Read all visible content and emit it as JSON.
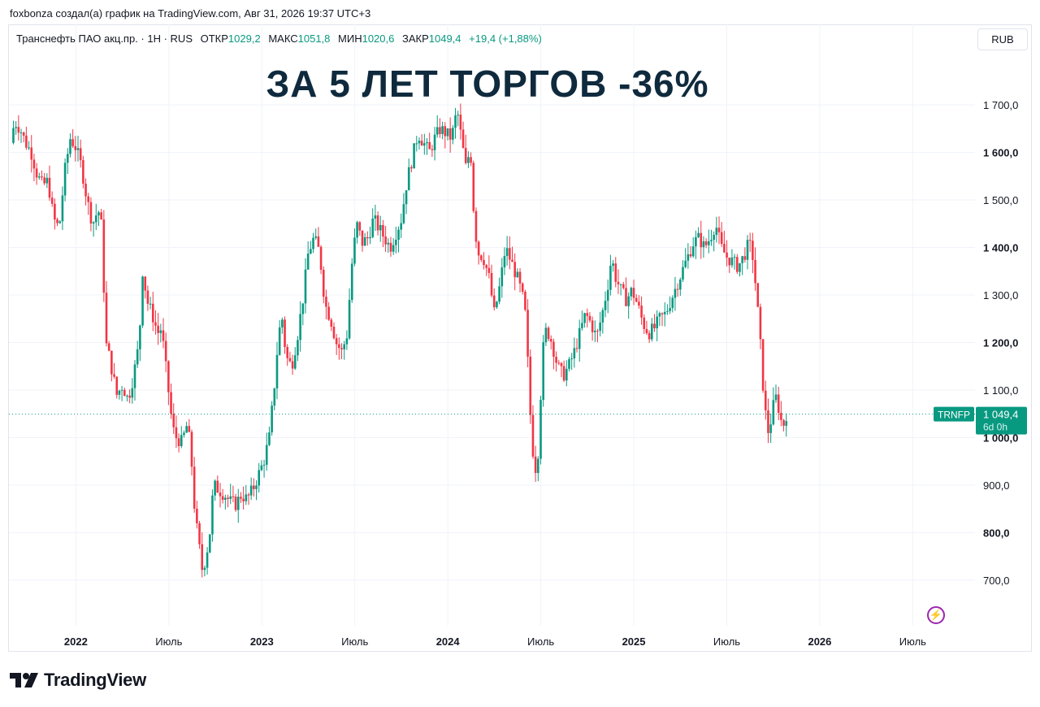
{
  "header_line": "foxbonza создал(а) график на TradingView.com, Авг 31, 2026 19:37 UTC+3",
  "legend": {
    "symbol": "Транснефть ПАО акц.пр. · 1H · RUS",
    "open_label": "ОТКР",
    "open": "1029,2",
    "high_label": "МАКС",
    "high": "1051,8",
    "low_label": "МИН",
    "low": "1020,6",
    "close_label": "ЗАКР",
    "close": "1049,4",
    "change": "+19,4 (+1,88%)"
  },
  "currency_button": "RUB",
  "title": "ЗА 5 ЛЕТ ТОРГОВ -36%",
  "price_tag": {
    "ticker": "TRNFP",
    "price": "1 049,4",
    "countdown": "6d 0h"
  },
  "brand": "TradingView",
  "colors": {
    "up": "#089981",
    "down": "#f23645",
    "title": "#0f2a3d",
    "accent_bolt": "#9c27b0"
  },
  "chart_data": {
    "type": "candlestick",
    "y_ticks": [
      "1 700,0",
      "1 600,0",
      "1 500,0",
      "1 400,0",
      "1 300,0",
      "1 200,0",
      "1 100,0",
      "1 000,0",
      "900,0",
      "800,0",
      "700,0"
    ],
    "y_tick_values": [
      1700,
      1600,
      1500,
      1400,
      1300,
      1200,
      1100,
      1000,
      900,
      800,
      700
    ],
    "y_tick_bold": [
      false,
      true,
      false,
      true,
      false,
      true,
      false,
      true,
      false,
      true,
      false
    ],
    "ylim": [
      610,
      1740
    ],
    "x_ticks": [
      "2022",
      "Июль",
      "2023",
      "Июль",
      "2024",
      "Июль",
      "2025",
      "Июль",
      "2026",
      "Июль"
    ],
    "x_tick_bold": [
      true,
      false,
      true,
      false,
      true,
      false,
      true,
      false,
      true,
      false
    ],
    "x_tick_dates": [
      2022.0,
      2022.5,
      2023.0,
      2023.5,
      2024.0,
      2024.5,
      2025.0,
      2025.5,
      2026.0,
      2026.5
    ],
    "x_range": [
      2021.64,
      2026.66
    ],
    "last_price": 1049.4,
    "path": [
      [
        2021.65,
        1620
      ],
      [
        2021.67,
        1665
      ],
      [
        2021.7,
        1650
      ],
      [
        2021.73,
        1620
      ],
      [
        2021.76,
        1600
      ],
      [
        2021.79,
        1555
      ],
      [
        2021.82,
        1530
      ],
      [
        2021.85,
        1540
      ],
      [
        2021.88,
        1460
      ],
      [
        2021.91,
        1440
      ],
      [
        2021.94,
        1560
      ],
      [
        2021.97,
        1630
      ],
      [
        2022.0,
        1610
      ],
      [
        2022.03,
        1570
      ],
      [
        2022.06,
        1500
      ],
      [
        2022.09,
        1450
      ],
      [
        2022.12,
        1480
      ],
      [
        2022.14,
        1440
      ],
      [
        2022.16,
        1200
      ],
      [
        2022.18,
        1170
      ],
      [
        2022.2,
        1130
      ],
      [
        2022.22,
        1090
      ],
      [
        2022.25,
        1110
      ],
      [
        2022.28,
        1080
      ],
      [
        2022.31,
        1130
      ],
      [
        2022.34,
        1200
      ],
      [
        2022.36,
        1360
      ],
      [
        2022.38,
        1290
      ],
      [
        2022.41,
        1260
      ],
      [
        2022.44,
        1220
      ],
      [
        2022.46,
        1230
      ],
      [
        2022.48,
        1160
      ],
      [
        2022.5,
        1090
      ],
      [
        2022.52,
        1020
      ],
      [
        2022.54,
        1000
      ],
      [
        2022.57,
        990
      ],
      [
        2022.6,
        1030
      ],
      [
        2022.62,
        960
      ],
      [
        2022.64,
        840
      ],
      [
        2022.66,
        780
      ],
      [
        2022.68,
        720
      ],
      [
        2022.7,
        750
      ],
      [
        2022.72,
        800
      ],
      [
        2022.74,
        900
      ],
      [
        2022.77,
        890
      ],
      [
        2022.8,
        880
      ],
      [
        2022.83,
        865
      ],
      [
        2022.86,
        860
      ],
      [
        2022.89,
        880
      ],
      [
        2022.92,
        870
      ],
      [
        2022.95,
        890
      ],
      [
        2022.98,
        920
      ],
      [
        2023.01,
        950
      ],
      [
        2023.04,
        1000
      ],
      [
        2023.07,
        1120
      ],
      [
        2023.09,
        1220
      ],
      [
        2023.11,
        1250
      ],
      [
        2023.13,
        1170
      ],
      [
        2023.16,
        1150
      ],
      [
        2023.19,
        1210
      ],
      [
        2023.22,
        1290
      ],
      [
        2023.25,
        1390
      ],
      [
        2023.28,
        1420
      ],
      [
        2023.31,
        1390
      ],
      [
        2023.34,
        1280
      ],
      [
        2023.37,
        1250
      ],
      [
        2023.4,
        1200
      ],
      [
        2023.43,
        1180
      ],
      [
        2023.46,
        1220
      ],
      [
        2023.48,
        1350
      ],
      [
        2023.51,
        1450
      ],
      [
        2023.54,
        1410
      ],
      [
        2023.57,
        1420
      ],
      [
        2023.6,
        1460
      ],
      [
        2023.63,
        1440
      ],
      [
        2023.66,
        1420
      ],
      [
        2023.69,
        1400
      ],
      [
        2023.72,
        1430
      ],
      [
        2023.75,
        1460
      ],
      [
        2023.78,
        1540
      ],
      [
        2023.81,
        1590
      ],
      [
        2023.84,
        1640
      ],
      [
        2023.87,
        1620
      ],
      [
        2023.9,
        1600
      ],
      [
        2023.93,
        1630
      ],
      [
        2023.96,
        1650
      ],
      [
        2023.99,
        1640
      ],
      [
        2024.02,
        1630
      ],
      [
        2024.05,
        1690
      ],
      [
        2024.08,
        1610
      ],
      [
        2024.1,
        1560
      ],
      [
        2024.12,
        1620
      ],
      [
        2024.14,
        1470
      ],
      [
        2024.16,
        1390
      ],
      [
        2024.19,
        1380
      ],
      [
        2024.22,
        1340
      ],
      [
        2024.25,
        1260
      ],
      [
        2024.28,
        1320
      ],
      [
        2024.31,
        1400
      ],
      [
        2024.34,
        1370
      ],
      [
        2024.37,
        1340
      ],
      [
        2024.4,
        1300
      ],
      [
        2024.42,
        1250
      ],
      [
        2024.44,
        1070
      ],
      [
        2024.46,
        960
      ],
      [
        2024.48,
        920
      ],
      [
        2024.49,
        1010
      ],
      [
        2024.51,
        1180
      ],
      [
        2024.53,
        1230
      ],
      [
        2024.56,
        1200
      ],
      [
        2024.59,
        1150
      ],
      [
        2024.62,
        1130
      ],
      [
        2024.65,
        1150
      ],
      [
        2024.68,
        1180
      ],
      [
        2024.71,
        1220
      ],
      [
        2024.74,
        1260
      ],
      [
        2024.77,
        1240
      ],
      [
        2024.8,
        1210
      ],
      [
        2024.83,
        1260
      ],
      [
        2024.86,
        1320
      ],
      [
        2024.88,
        1380
      ],
      [
        2024.9,
        1340
      ],
      [
        2024.93,
        1310
      ],
      [
        2024.96,
        1290
      ],
      [
        2024.99,
        1310
      ],
      [
        2025.02,
        1280
      ],
      [
        2025.05,
        1240
      ],
      [
        2025.08,
        1220
      ],
      [
        2025.11,
        1230
      ],
      [
        2025.14,
        1250
      ],
      [
        2025.17,
        1260
      ],
      [
        2025.2,
        1290
      ],
      [
        2025.23,
        1320
      ],
      [
        2025.26,
        1350
      ],
      [
        2025.29,
        1380
      ],
      [
        2025.32,
        1410
      ],
      [
        2025.35,
        1420
      ],
      [
        2025.38,
        1400
      ],
      [
        2025.41,
        1420
      ],
      [
        2025.44,
        1450
      ],
      [
        2025.47,
        1400
      ],
      [
        2025.5,
        1380
      ],
      [
        2025.53,
        1370
      ],
      [
        2025.56,
        1360
      ],
      [
        2025.59,
        1380
      ],
      [
        2025.62,
        1410
      ],
      [
        2025.64,
        1380
      ],
      [
        2025.66,
        1300
      ],
      [
        2025.68,
        1200
      ],
      [
        2025.7,
        1080
      ],
      [
        2025.72,
        1010
      ],
      [
        2025.74,
        1040
      ],
      [
        2025.76,
        1090
      ],
      [
        2025.78,
        1060
      ],
      [
        2025.8,
        1020
      ],
      [
        2025.82,
        1049.4
      ]
    ]
  }
}
